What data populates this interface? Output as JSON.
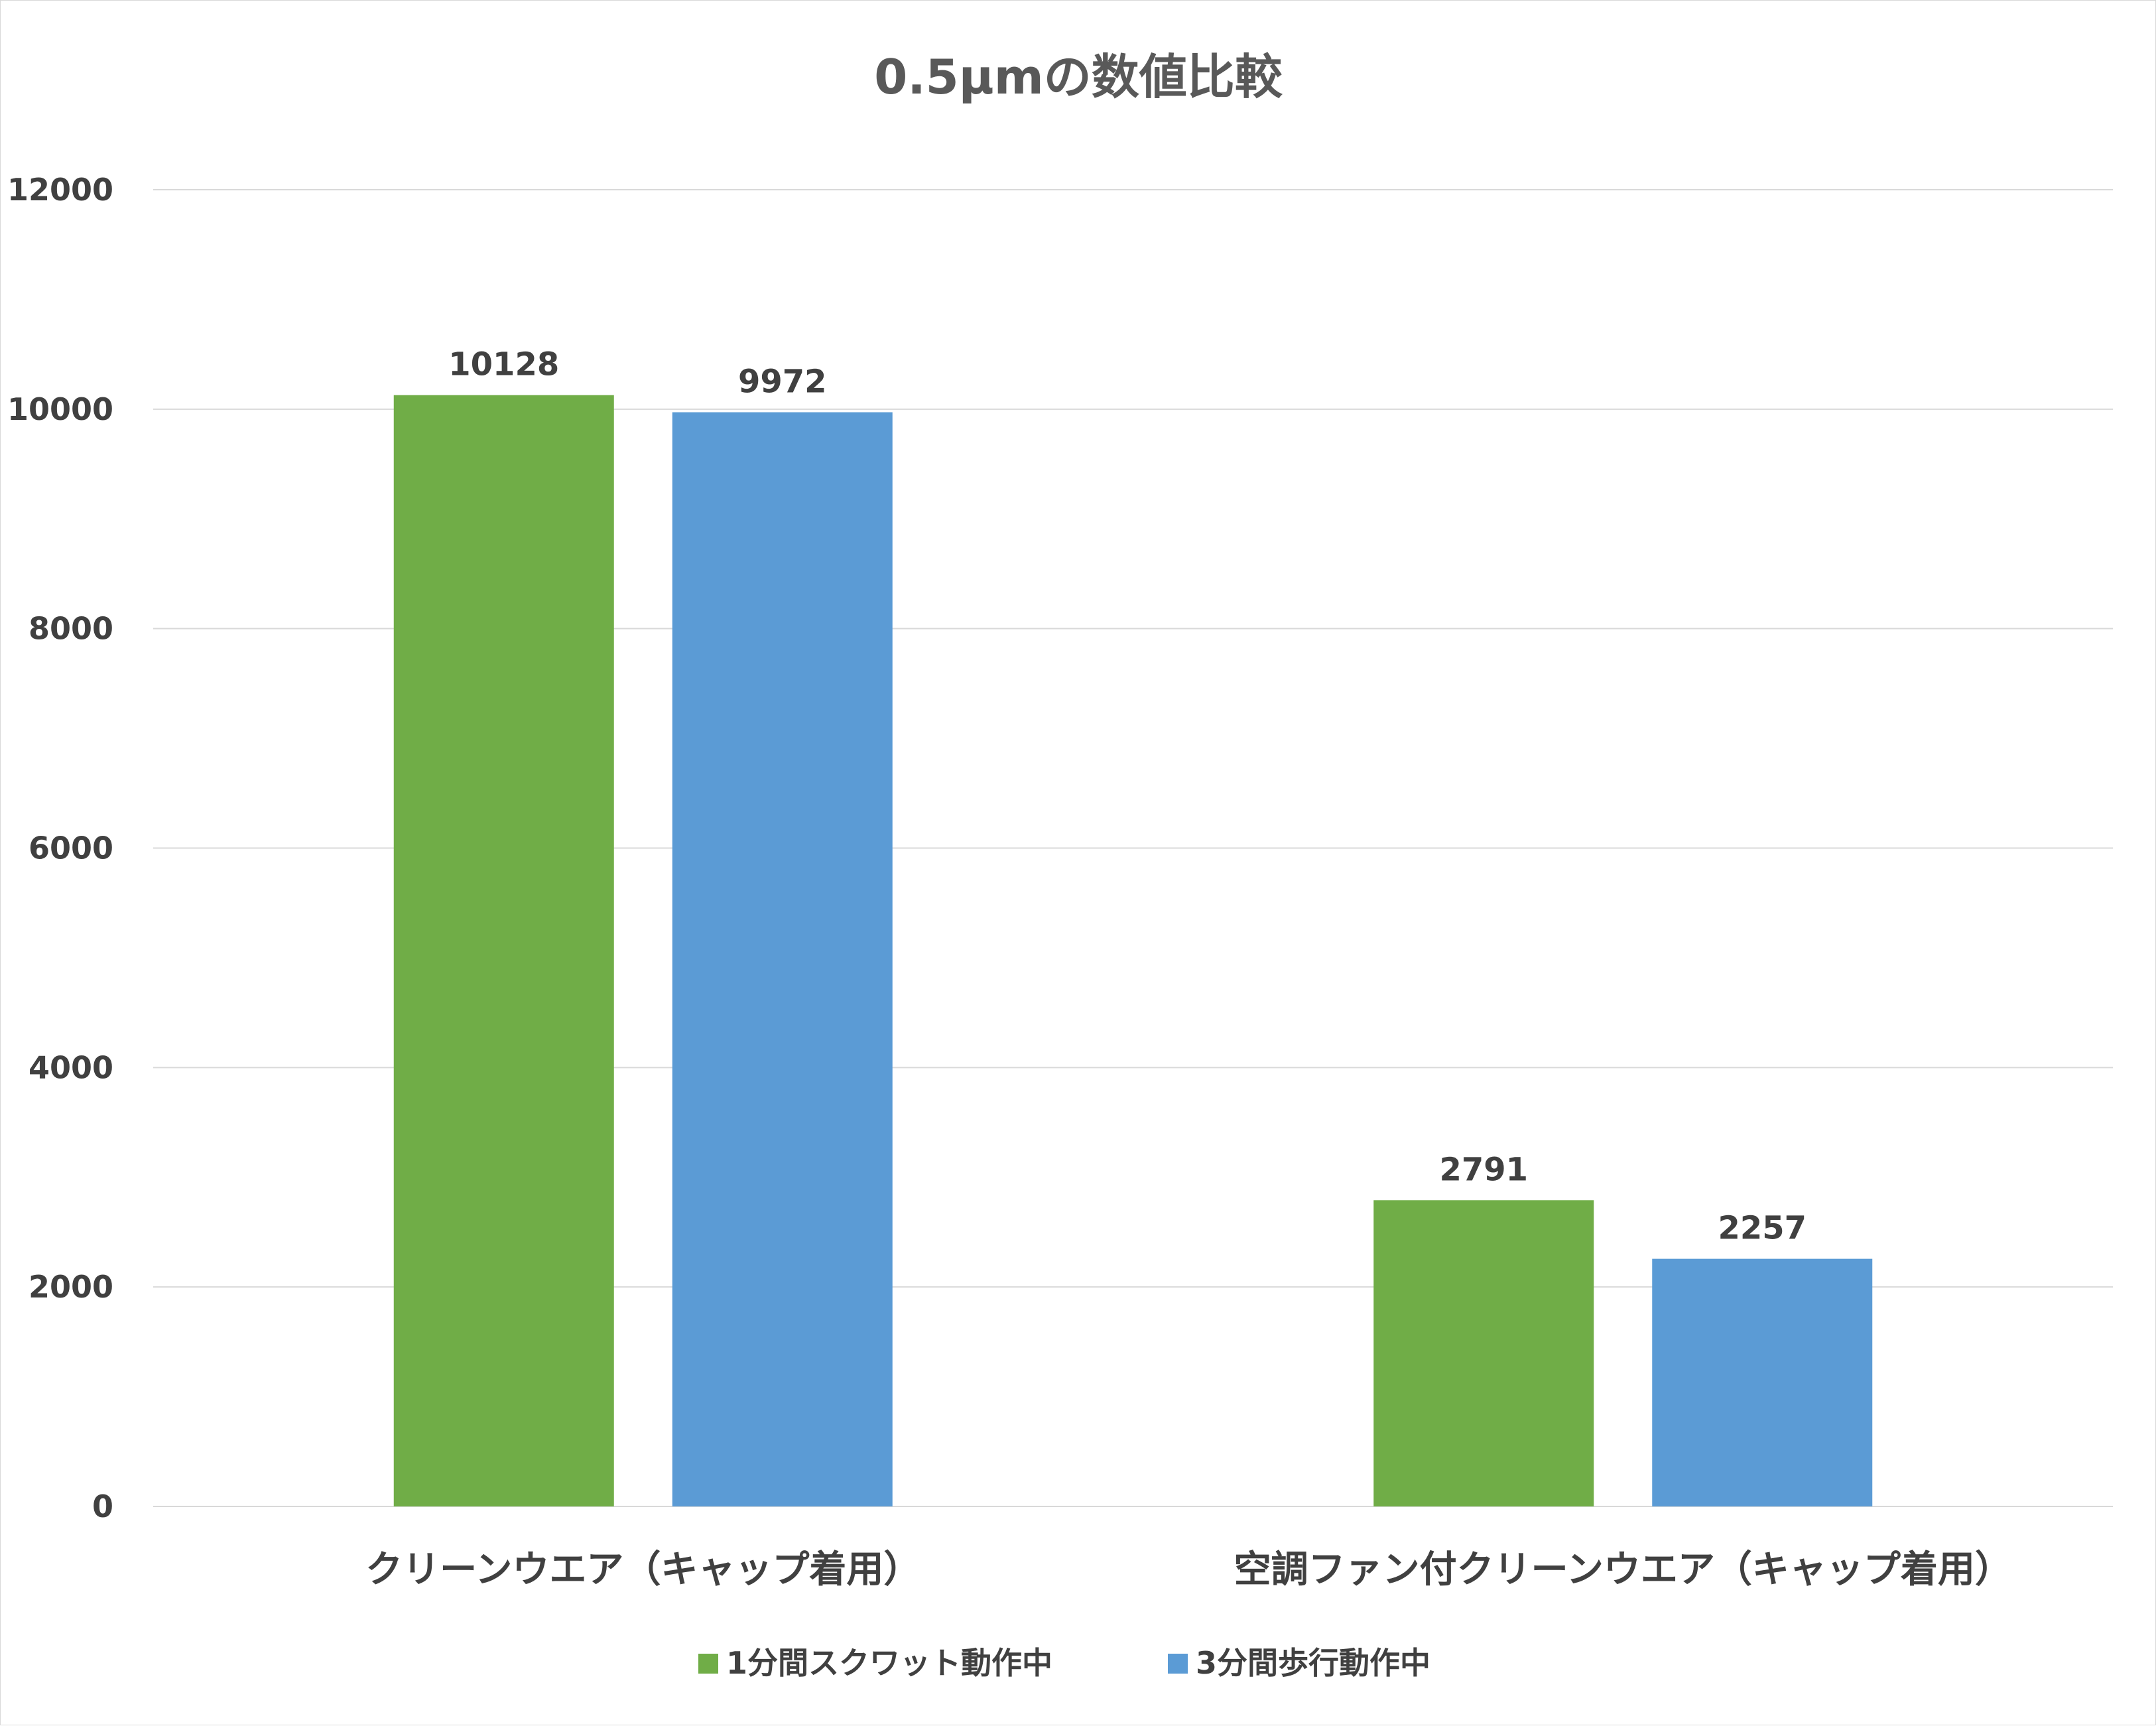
{
  "chart_data": {
    "type": "bar",
    "title": "0.5μmの数値比較",
    "categories": [
      "クリーンウエア（キャップ着用）",
      "空調ファン付クリーンウエア（キャップ着用）"
    ],
    "series": [
      {
        "name": "1分間スクワット動作中",
        "values": [
          10128,
          2791
        ],
        "color": "#70ad47"
      },
      {
        "name": "3分間歩行動作中",
        "values": [
          9972,
          2257
        ],
        "color": "#5b9bd5"
      }
    ],
    "ylim": [
      0,
      12000
    ],
    "yticks": [
      0,
      2000,
      4000,
      6000,
      8000,
      10000,
      12000
    ],
    "grid": true,
    "legend_position": "bottom",
    "xlabel": "",
    "ylabel": ""
  }
}
